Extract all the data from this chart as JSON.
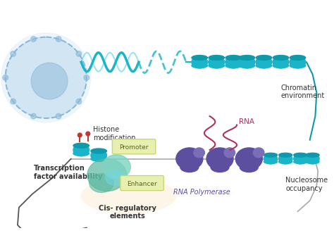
{
  "labels": {
    "chromatin_environment": "Chromatin\nenvironment",
    "histone_modification": "Histone\nmodification",
    "rna": "RNA",
    "nucleosome_occupancy": "Nucleosome\noccupancy",
    "transcription_factor": "Transcription\nfactor availability",
    "rna_polymerase": "RNA Polymerase",
    "promoter": "Promoter",
    "enhancer": "Enhancer",
    "cis_regulatory": "Cis- regulatory\nelements"
  },
  "colors": {
    "background": "#ffffff",
    "teal": "#1ab5c8",
    "teal_dark": "#0e9aab",
    "teal_light": "#6fd8e8",
    "purple": "#5c4fa0",
    "purple_light": "#7b6db8",
    "blue_light": "#d6eaf8",
    "blue_cell": "#c5dff0",
    "blue_cell_dark": "#8ab8d8",
    "green_tf": "#5ab8a0",
    "green_tf2": "#7dd4c0",
    "red_mark": "#c0392b",
    "red_rna": "#b03060",
    "label_color": "#333333",
    "promoter_fill": "#e8f0b0",
    "promoter_border": "#c8d870",
    "enhancer_fill": "#e8f0b0",
    "enhancer_border": "#c8d870",
    "cis_fill": "#fdf5e6",
    "loop_color": "#555555"
  }
}
